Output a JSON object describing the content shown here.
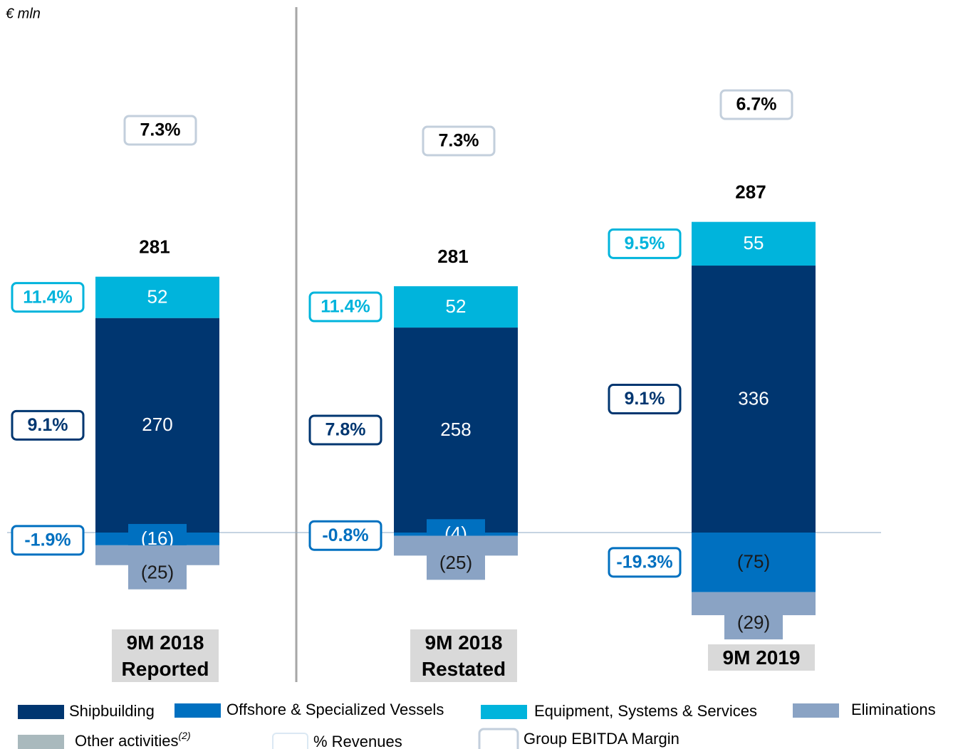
{
  "unit": "€ mln",
  "chart_data": {
    "type": "bar",
    "stacked": true,
    "categories": [
      "9M 2018 Reported",
      "9M 2018 Restated",
      "9M 2019"
    ],
    "series": [
      {
        "name": "Shipbuilding",
        "color": "#003670",
        "values": [
          270,
          258,
          336
        ],
        "margins": [
          9.1,
          7.8,
          9.1
        ],
        "margin_labels": [
          "9.1%",
          "7.8%",
          "9.1%"
        ]
      },
      {
        "name": "Offshore & Specialized Vessels",
        "color": "#0070c0",
        "values": [
          -16,
          -4,
          -75
        ],
        "value_labels": [
          "(16)",
          "(4)",
          "(75)"
        ],
        "margins": [
          -1.9,
          -0.8,
          -19.3
        ],
        "margin_labels": [
          "-1.9%",
          "-0.8%",
          "-19.3%"
        ]
      },
      {
        "name": "Equipment, Systems & Services",
        "color": "#00b4dc",
        "values": [
          52,
          52,
          55
        ],
        "margins": [
          11.4,
          11.4,
          9.5
        ],
        "margin_labels": [
          "11.4%",
          "11.4%",
          "9.5%"
        ]
      },
      {
        "name": "Eliminations",
        "color": "#8aa3c4",
        "values": [
          -25,
          -25,
          -29
        ],
        "value_labels": [
          "(25)",
          "(25)",
          "(29)"
        ]
      },
      {
        "name": "Other activities",
        "superscript": "(2)",
        "color": "#a9b9bd",
        "values": [
          null,
          null,
          null
        ]
      }
    ],
    "totals": [
      281,
      281,
      287
    ],
    "ebitda_margins": [
      7.3,
      7.3,
      6.7
    ],
    "ebitda_margin_labels": [
      "7.3%",
      "7.3%",
      "6.7%"
    ],
    "legend_extra": [
      {
        "name": "% Revenues"
      },
      {
        "name": "Group EBITDA Margin"
      }
    ]
  }
}
